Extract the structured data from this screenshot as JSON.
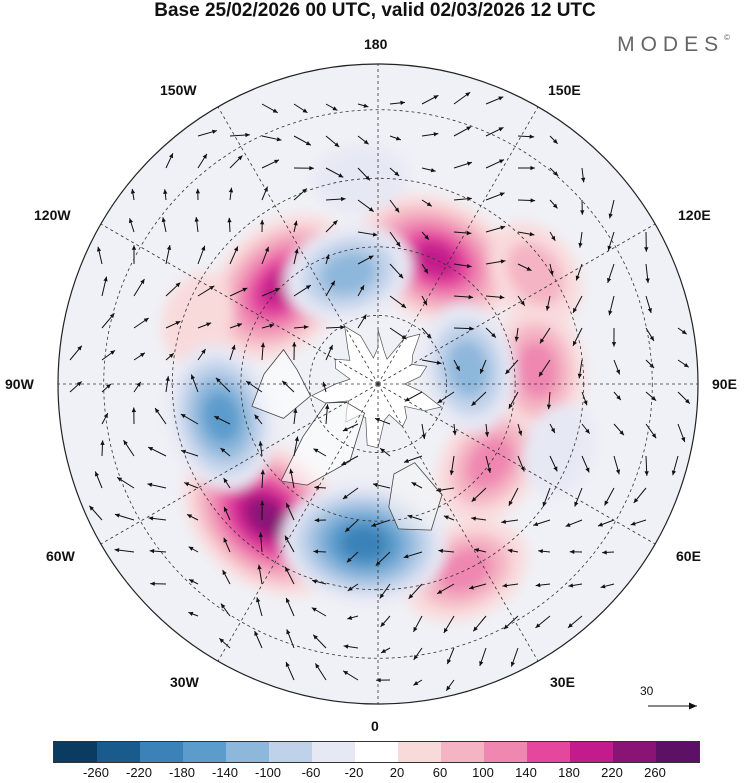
{
  "title": "Base 25/02/2026 00 UTC, valid 02/03/2026 12 UTC",
  "brand": "MODES",
  "brand_mark": "©",
  "longitude_labels": {
    "top": "180",
    "bottom": "0",
    "left": "90W",
    "right": "90E",
    "w150": "150W",
    "e150": "150E",
    "w120": "120W",
    "e120": "120E",
    "w60": "60W",
    "e60": "60E",
    "w30": "30W",
    "e30": "30E"
  },
  "reference_vector": {
    "value": "30"
  },
  "colorbar": {
    "colors": [
      "#0a3c61",
      "#1a5b8e",
      "#3a82b8",
      "#5c9ccc",
      "#8eb7dc",
      "#c0d2ea",
      "#e6e8f4",
      "#ffffff",
      "#f9dadb",
      "#f4b4c3",
      "#ef87b1",
      "#e5479f",
      "#c41b8c",
      "#891476",
      "#5c1166"
    ],
    "tick_labels": [
      "-260",
      "-220",
      "-180",
      "-140",
      "-100",
      "-60",
      "-20",
      "20",
      "60",
      "100",
      "140",
      "180",
      "220",
      "260"
    ]
  },
  "anomalies": [
    {
      "lon": 155,
      "lat": 60,
      "value": 230
    },
    {
      "lon": -135,
      "lat": 60,
      "value": 200
    },
    {
      "lon": -40,
      "lat": 52,
      "value": 270
    },
    {
      "lon": 25,
      "lat": 45,
      "value": 140
    },
    {
      "lon": 55,
      "lat": 60,
      "value": 120
    },
    {
      "lon": 95,
      "lat": 55,
      "value": 120
    },
    {
      "lon": 125,
      "lat": 48,
      "value": 80
    },
    {
      "lon": -110,
      "lat": 48,
      "value": 60
    },
    {
      "lon": -165,
      "lat": 65,
      "value": -150
    },
    {
      "lon": -175,
      "lat": 45,
      "value": -70
    },
    {
      "lon": -78,
      "lat": 55,
      "value": -180
    },
    {
      "lon": -5,
      "lat": 55,
      "value": -220
    },
    {
      "lon": 100,
      "lat": 70,
      "value": -150
    },
    {
      "lon": 70,
      "lat": 48,
      "value": -40
    }
  ]
}
